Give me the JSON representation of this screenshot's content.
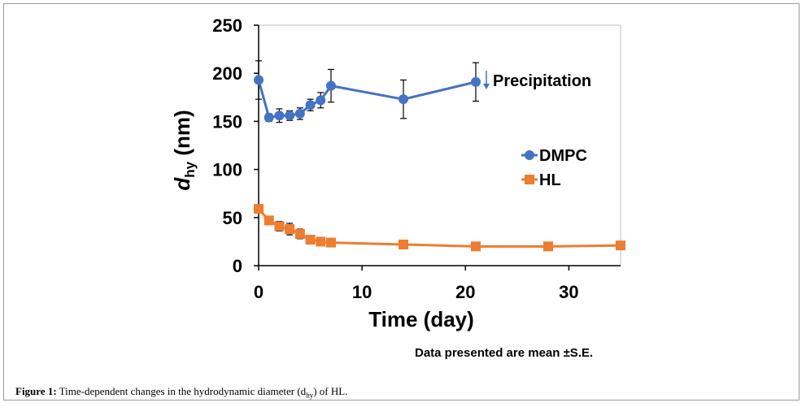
{
  "chart_data": {
    "type": "line",
    "xlabel": "Time (day)",
    "ylabel_main": "d",
    "ylabel_sub": "hy",
    "ylabel_unit": " (nm)",
    "xlim": [
      0,
      35
    ],
    "ylim": [
      0,
      250
    ],
    "xticks": [
      0,
      10,
      20,
      30
    ],
    "yticks": [
      0,
      50,
      100,
      150,
      200,
      250
    ],
    "grid": false,
    "legend_position": "right-center",
    "series": [
      {
        "name": "DMPC",
        "color": "#4472C4",
        "marker": "circle",
        "x": [
          0,
          1,
          2,
          3,
          4,
          5,
          6,
          7,
          14,
          21
        ],
        "y": [
          193,
          154,
          156,
          156,
          158,
          167,
          172,
          187,
          173,
          191
        ],
        "err": [
          20,
          4,
          7,
          5,
          6,
          6,
          8,
          17,
          20,
          20
        ]
      },
      {
        "name": "HL",
        "color": "#ED7D31",
        "marker": "square",
        "x": [
          0,
          1,
          2,
          3,
          4,
          5,
          6,
          7,
          14,
          21,
          28,
          35
        ],
        "y": [
          59,
          47,
          41,
          38,
          33,
          27,
          25,
          24,
          22,
          20,
          20,
          21
        ],
        "err": [
          0,
          4,
          5,
          6,
          5,
          3,
          2,
          1,
          0,
          0,
          0,
          0
        ]
      }
    ],
    "annotation": {
      "text": "Precipitation",
      "x": 22,
      "y": 193
    }
  },
  "note": "Data presented are mean ±S.E.",
  "caption": {
    "label": "Figure 1:",
    "text_before": " Time-dependent changes in the hydrodynamic diameter (d",
    "sub": "hy",
    "text_after": ") of HL."
  }
}
